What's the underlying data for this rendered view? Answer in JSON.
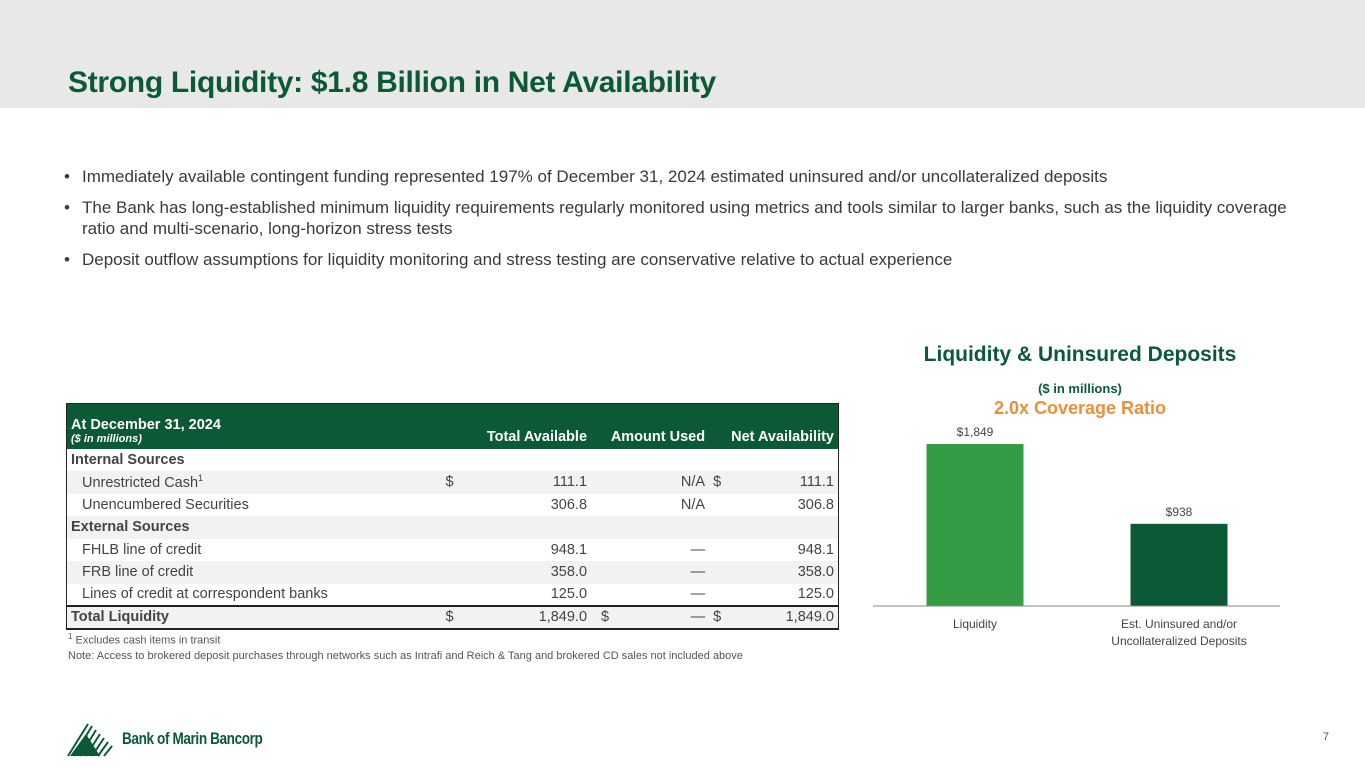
{
  "title": "Strong Liquidity: $1.8 Billion in Net Availability",
  "bullets": [
    "Immediately available contingent funding represented 197% of December 31, 2024 estimated uninsured and/or uncollateralized deposits",
    "The Bank has long-established minimum liquidity requirements regularly monitored using metrics and tools similar to larger banks, such as the liquidity coverage ratio and multi-scenario, long-horizon stress tests",
    "Deposit outflow assumptions for liquidity monitoring and stress testing are conservative relative to actual experience"
  ],
  "table": {
    "header": {
      "date": "At December 31, 2024",
      "units": "($ in millions)",
      "cols": [
        "Total Available",
        "Amount Used",
        "Net Availability"
      ]
    },
    "sections": {
      "internal": "Internal Sources",
      "external": "External Sources"
    },
    "rows": [
      {
        "label": "Unrestricted Cash",
        "sup": "1",
        "d1": "$",
        "total": "111.1",
        "used": "N/A",
        "d3": "$",
        "net": "111.1"
      },
      {
        "label": "Unencumbered Securities",
        "d1": "",
        "total": "306.8",
        "used": "N/A",
        "d3": "",
        "net": "306.8"
      },
      {
        "label": "FHLB line of credit",
        "d1": "",
        "total": "948.1",
        "used": "—",
        "d3": "",
        "net": "948.1"
      },
      {
        "label": "FRB line of credit",
        "d1": "",
        "total": "358.0",
        "used": "—",
        "d3": "",
        "net": "358.0"
      },
      {
        "label": "Lines of credit at correspondent banks",
        "d1": "",
        "total": "125.0",
        "used": "—",
        "d3": "",
        "net": "125.0"
      }
    ],
    "total": {
      "label": "Total Liquidity",
      "d1": "$",
      "total": "1,849.0",
      "d2": "$",
      "used": "—",
      "d3": "$",
      "net": "1,849.0"
    }
  },
  "footnote": {
    "sup": "1",
    "text": "Excludes cash items in transit",
    "note": "Note: Access to brokered deposit purchases through networks such as Intrafi and Reich & Tang and brokered CD sales not included above"
  },
  "chart_data": {
    "type": "bar",
    "title": "Liquidity & Uninsured Deposits",
    "subtitle": "($ in millions)",
    "annotation": "2.0x Coverage Ratio",
    "categories": [
      "Liquidity",
      "Est. Uninsured and/or Uncollateralized Deposits"
    ],
    "category_lines": [
      [
        "Liquidity"
      ],
      [
        "Est. Uninsured and/or",
        "Uncollateralized Deposits"
      ]
    ],
    "values": [
      1849,
      938
    ],
    "data_labels": [
      "$1,849",
      "$938"
    ],
    "colors": [
      "#339c45",
      "#0b5a35"
    ],
    "annotation_color": "#e8913a"
  },
  "brand": {
    "name": "Bank of Marin Bancorp",
    "color": "#0b5a35"
  },
  "page_number": "7"
}
